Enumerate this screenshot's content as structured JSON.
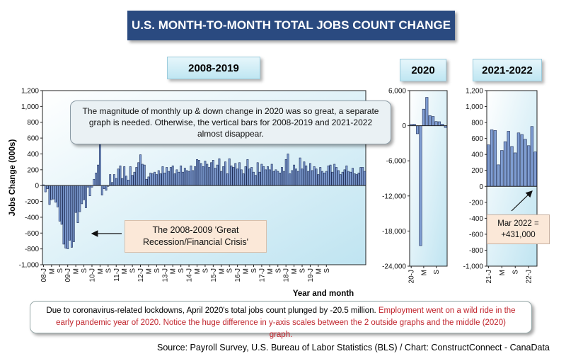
{
  "title": "U.S. MONTH-TO-MONTH TOTAL JOBS COUNT CHANGE",
  "callout_top": "The magnitude of monthly up & down change in 2020 was so great, a separate graph is needed. Otherwise, the vertical bars for 2008-2019 and 2021-2022 almost disappear.",
  "callout_recession": "The 2008-2009 'Great Recession/Financial Crisis'",
  "callout_mar2022_line1": "Mar 2022 =",
  "callout_mar2022_line2": "+431,000",
  "note_black": "Due to coronavirus-related lockdowns, April 2020's total jobs count plunged by -20.5 million. ",
  "note_red": "Employment went on a wild ride in the early pandemic year of 2020. Notice the huge difference in y-axis scales between the 2 outside graphs and the middle (2020) graph.",
  "source": "Source: Payroll Survey, U.S. Bureau of Labor Statistics (BLS) / Chart: ConstructConnect - CanaData",
  "colors": {
    "bar_fill": "#7f9dd2",
    "bar_stroke": "#1f2f5a",
    "title_bg": "#2a4a80"
  },
  "chart_data": [
    {
      "type": "bar",
      "panel_title": "2008-2019",
      "ylabel": "Jobs Change (000s)",
      "xlabel": "Year and month",
      "ylim": [
        -1000,
        1200
      ],
      "yticks": [
        1200,
        1000,
        800,
        600,
        400,
        200,
        0,
        -200,
        -400,
        -600,
        -800,
        -1000
      ],
      "ytick_labels": [
        "1,200",
        "1,000",
        "800",
        "600",
        "400",
        "200",
        "0",
        "-200",
        "-400",
        "-600",
        "-800",
        "-1,000"
      ],
      "xtick_labels": [
        "08-J",
        "M",
        "S",
        "09-J",
        "M",
        "S",
        "10-J",
        "M",
        "S",
        "11-J",
        "M",
        "S",
        "12-J",
        "M",
        "S",
        "13-J",
        "M",
        "S",
        "14-J",
        "M",
        "S",
        "15-J",
        "M",
        "S",
        "16-J",
        "M",
        "S",
        "17-J",
        "M",
        "S",
        "18-J",
        "M",
        "S",
        "19-J",
        "M",
        "S"
      ],
      "values": [
        10,
        -80,
        -40,
        -240,
        -180,
        -170,
        -210,
        -270,
        -450,
        -490,
        -740,
        -790,
        -800,
        -690,
        -780,
        -710,
        -340,
        -470,
        -330,
        -230,
        -180,
        -280,
        -20,
        -130,
        -20,
        80,
        160,
        260,
        540,
        -120,
        -40,
        -60,
        -10,
        140,
        40,
        140,
        90,
        210,
        250,
        90,
        240,
        120,
        70,
        240,
        130,
        170,
        230,
        290,
        390,
        270,
        260,
        80,
        110,
        160,
        150,
        170,
        140,
        190,
        150,
        240,
        160,
        230,
        180,
        230,
        250,
        150,
        200,
        170,
        250,
        170,
        220,
        190,
        180,
        250,
        190,
        240,
        330,
        320,
        280,
        240,
        310,
        270,
        230,
        290,
        320,
        220,
        260,
        340,
        180,
        240,
        300,
        150,
        340,
        250,
        230,
        280,
        210,
        290,
        200,
        150,
        240,
        330,
        210,
        230,
        170,
        130,
        290,
        170,
        270,
        240,
        200,
        240,
        200,
        270,
        180,
        200,
        180,
        160,
        230,
        180,
        330,
        400,
        150,
        190,
        260,
        210,
        180,
        350,
        210,
        300,
        250,
        180,
        280,
        190,
        240,
        210,
        140,
        230,
        180,
        160,
        180,
        250,
        260,
        170,
        270,
        230,
        190,
        140,
        170,
        200,
        250,
        180,
        170,
        220,
        150,
        140,
        160,
        230,
        230,
        180
      ]
    },
    {
      "type": "bar",
      "panel_title": "2020",
      "ylim": [
        -24000,
        6000
      ],
      "yticks": [
        6000,
        0,
        -6000,
        -12000,
        -18000,
        -24000
      ],
      "ytick_labels": [
        "6,000",
        "0",
        "-6,000",
        "-12,000",
        "-18,000",
        "-24,000"
      ],
      "xtick_labels": [
        "20-J",
        "M",
        "S"
      ],
      "values": [
        214,
        251,
        -1373,
        -20493,
        2833,
        4846,
        1726,
        1583,
        716,
        680,
        264,
        -306
      ]
    },
    {
      "type": "bar",
      "panel_title": "2021-2022",
      "ylim": [
        -1000,
        1200
      ],
      "yticks": [
        1200,
        1000,
        800,
        600,
        400,
        200,
        0,
        -200,
        -400,
        -600,
        -800,
        -1000
      ],
      "ytick_labels": [
        "1,200",
        "1,000",
        "800",
        "600",
        "400",
        "200",
        "0",
        "-200",
        "-400",
        "-600",
        "-800",
        "-1,000"
      ],
      "xtick_labels": [
        "21-J",
        "M",
        "S",
        "22-J"
      ],
      "values": [
        520,
        710,
        700,
        270,
        450,
        560,
        690,
        500,
        420,
        670,
        650,
        590,
        510,
        750,
        431
      ]
    }
  ]
}
